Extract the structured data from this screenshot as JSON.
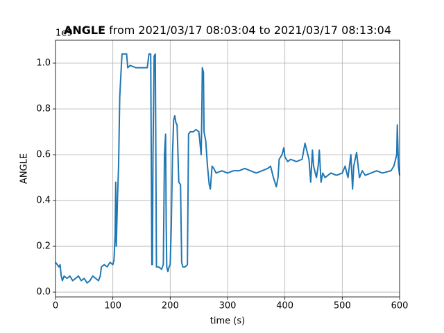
{
  "chart_data": {
    "type": "line",
    "title_bold": "ANGLE",
    "title_rest": "from 2021/03/17 08:03:04 to 2021/03/17 08:13:04",
    "xlabel": "time (s)",
    "ylabel": "ANGLE",
    "y_offset_label": "1e9",
    "color": "#1f77b4",
    "grid": true,
    "xlim": [
      0,
      600
    ],
    "ylim": [
      -0.021,
      1.1
    ],
    "xticks": [
      0,
      100,
      200,
      300,
      400,
      500,
      600
    ],
    "yticks": [
      {
        "value": 0,
        "label": "0.0"
      },
      0.2,
      0.4,
      0.6,
      0.8,
      {
        "value": 1,
        "label": "1.0"
      }
    ],
    "x": [
      0,
      3,
      6,
      8,
      10,
      12,
      15,
      20,
      25,
      30,
      35,
      40,
      45,
      50,
      55,
      60,
      65,
      70,
      75,
      78,
      80,
      85,
      90,
      95,
      100,
      102,
      104,
      105,
      106,
      108,
      110,
      112,
      114,
      116,
      120,
      124,
      126,
      130,
      140,
      150,
      160,
      163,
      166,
      167,
      168,
      169,
      170,
      172,
      174,
      175,
      176,
      180,
      185,
      188,
      190,
      192,
      193,
      194,
      196,
      198,
      200,
      202,
      204,
      206,
      208,
      210,
      212,
      215,
      218,
      220,
      222,
      226,
      230,
      232,
      235,
      240,
      245,
      250,
      254,
      255,
      256,
      258,
      259,
      262,
      265,
      268,
      270,
      273,
      276,
      280,
      290,
      300,
      310,
      320,
      330,
      340,
      350,
      360,
      370,
      375,
      380,
      385,
      388,
      390,
      395,
      398,
      400,
      405,
      410,
      420,
      430,
      435,
      438,
      442,
      445,
      448,
      450,
      455,
      458,
      460,
      463,
      466,
      470,
      480,
      490,
      500,
      505,
      510,
      515,
      518,
      520,
      525,
      530,
      535,
      540,
      550,
      560,
      570,
      585,
      590,
      595,
      596,
      598,
      600
    ],
    "values": [
      0.13,
      0.12,
      0.11,
      0.12,
      0.07,
      0.05,
      0.07,
      0.06,
      0.07,
      0.05,
      0.06,
      0.07,
      0.05,
      0.06,
      0.04,
      0.05,
      0.07,
      0.06,
      0.05,
      0.07,
      0.11,
      0.12,
      0.11,
      0.13,
      0.12,
      0.14,
      0.25,
      0.48,
      0.2,
      0.4,
      0.55,
      0.85,
      0.95,
      1.04,
      1.04,
      1.04,
      0.98,
      0.99,
      0.98,
      0.98,
      0.98,
      1.04,
      1.04,
      0.6,
      0.12,
      0.12,
      0.6,
      1.03,
      1.04,
      0.6,
      0.11,
      0.11,
      0.1,
      0.12,
      0.6,
      0.69,
      0.3,
      0.11,
      0.09,
      0.11,
      0.12,
      0.3,
      0.6,
      0.75,
      0.77,
      0.74,
      0.73,
      0.48,
      0.47,
      0.13,
      0.11,
      0.11,
      0.12,
      0.69,
      0.7,
      0.7,
      0.71,
      0.7,
      0.6,
      0.75,
      0.98,
      0.96,
      0.7,
      0.66,
      0.55,
      0.47,
      0.45,
      0.55,
      0.54,
      0.52,
      0.53,
      0.52,
      0.53,
      0.53,
      0.54,
      0.53,
      0.52,
      0.53,
      0.54,
      0.55,
      0.5,
      0.46,
      0.5,
      0.58,
      0.6,
      0.63,
      0.59,
      0.57,
      0.58,
      0.57,
      0.58,
      0.65,
      0.62,
      0.58,
      0.48,
      0.62,
      0.55,
      0.5,
      0.55,
      0.62,
      0.48,
      0.52,
      0.5,
      0.52,
      0.51,
      0.52,
      0.55,
      0.5,
      0.6,
      0.45,
      0.55,
      0.61,
      0.5,
      0.53,
      0.51,
      0.52,
      0.53,
      0.52,
      0.53,
      0.55,
      0.6,
      0.73,
      0.55,
      0.51
    ]
  }
}
